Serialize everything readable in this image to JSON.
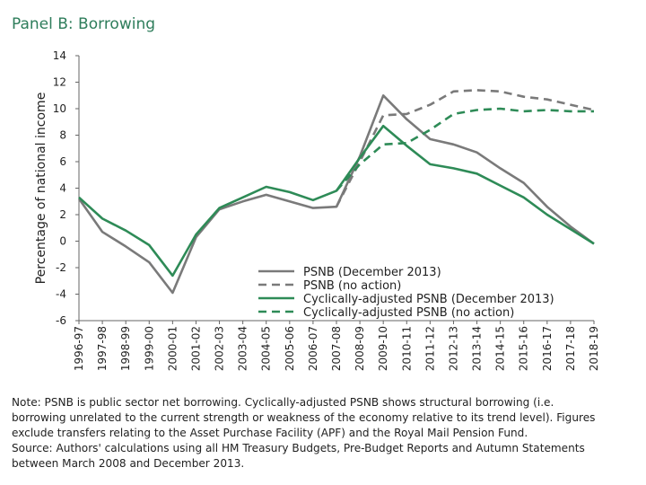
{
  "panel_title": "Panel B: Borrowing",
  "note_lines": [
    "Note: PSNB is public sector net borrowing. Cyclically-adjusted PSNB shows structural borrowing (i.e.",
    "borrowing unrelated to the current strength or weakness of the economy relative to its trend level). Figures",
    "exclude transfers relating to the Asset Purchase Facility (APF) and the Royal Mail Pension Fund.",
    "Source: Authors' calculations using all HM Treasury Budgets, Pre-Budget Reports and Autumn Statements",
    "between March 2008 and December 2013."
  ],
  "chart_data": {
    "type": "line",
    "title": "Panel B: Borrowing",
    "xlabel": "",
    "ylabel": "Percentage of national income",
    "ylim": [
      -6,
      14
    ],
    "yticks": [
      "14",
      "12",
      "10",
      "8",
      "6",
      "4",
      "2",
      "0",
      "-2",
      "-4",
      "-6"
    ],
    "ytick_values": [
      14,
      12,
      10,
      8,
      6,
      4,
      2,
      0,
      -2,
      -4,
      -6
    ],
    "categories": [
      "1996-97",
      "1997-98",
      "1998-99",
      "1999-00",
      "2000-01",
      "2001-02",
      "2002-03",
      "2003-04",
      "2004-05",
      "2005-06",
      "2006-07",
      "2007-08",
      "2008-09",
      "2009-10",
      "2010-11",
      "2011-12",
      "2012-13",
      "2013-14",
      "2014-15",
      "2015-16",
      "2016-17",
      "2017-18",
      "2018-19"
    ],
    "grid": false,
    "legend_position": "bottom-right",
    "series": [
      {
        "name": "PSNB (December 2013)",
        "color": "#7a7a7a",
        "dash": "solid",
        "values": [
          3.2,
          0.7,
          -0.4,
          -1.6,
          -3.9,
          0.3,
          2.4,
          3.0,
          3.5,
          3.0,
          2.5,
          2.6,
          6.4,
          11.0,
          9.2,
          7.7,
          7.3,
          6.7,
          5.5,
          4.4,
          2.6,
          1.1,
          -0.2
        ]
      },
      {
        "name": "PSNB (no action)",
        "color": "#7a7a7a",
        "dash": "dashed",
        "values": [
          null,
          null,
          null,
          null,
          null,
          null,
          null,
          null,
          null,
          null,
          null,
          2.6,
          6.0,
          9.5,
          9.6,
          10.3,
          11.3,
          11.4,
          11.3,
          10.9,
          10.7,
          10.3,
          9.9
        ]
      },
      {
        "name": "Cyclically-adjusted PSNB (December 2013)",
        "color": "#2e8b57",
        "dash": "solid",
        "values": [
          3.3,
          1.7,
          0.8,
          -0.3,
          -2.6,
          0.5,
          2.5,
          3.3,
          4.1,
          3.7,
          3.1,
          3.8,
          6.3,
          8.7,
          7.2,
          5.8,
          5.5,
          5.1,
          4.2,
          3.3,
          2.0,
          0.9,
          -0.2
        ]
      },
      {
        "name": "Cyclically-adjusted PSNB (no action)",
        "color": "#2e8b57",
        "dash": "dashed",
        "values": [
          null,
          null,
          null,
          null,
          null,
          null,
          null,
          null,
          null,
          null,
          null,
          3.8,
          5.8,
          7.3,
          7.4,
          8.4,
          9.6,
          9.9,
          10.0,
          9.8,
          9.9,
          9.8,
          9.8
        ]
      }
    ]
  }
}
